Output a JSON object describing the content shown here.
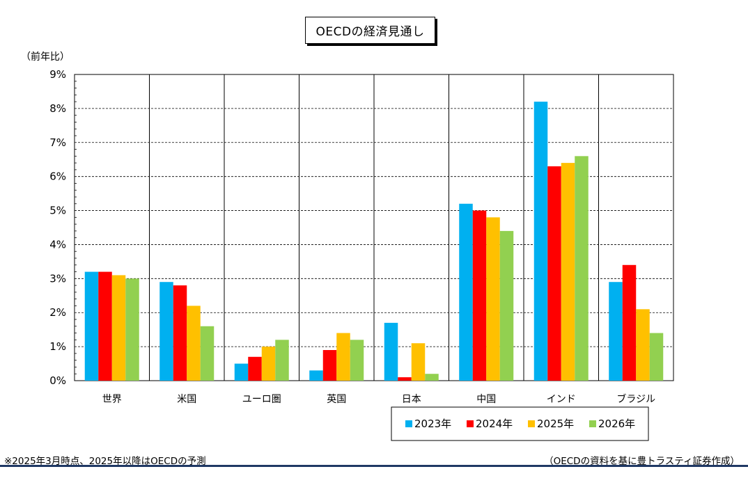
{
  "chart_data": {
    "type": "bar",
    "title": "OECDの経済見通し",
    "ylabel": "（前年比）",
    "ylim": [
      0,
      9
    ],
    "yticks": [
      "0%",
      "1%",
      "2%",
      "3%",
      "4%",
      "5%",
      "6%",
      "7%",
      "8%",
      "9%"
    ],
    "categories": [
      "世界",
      "米国",
      "ユーロ圏",
      "英国",
      "日本",
      "中国",
      "インド",
      "ブラジル"
    ],
    "series": [
      {
        "name": "2023年",
        "color": "#00b0f0",
        "values": [
          3.2,
          2.9,
          0.5,
          0.3,
          1.7,
          5.2,
          8.2,
          2.9
        ]
      },
      {
        "name": "2024年",
        "color": "#ff0000",
        "values": [
          3.2,
          2.8,
          0.7,
          0.9,
          0.1,
          5.0,
          6.3,
          3.4
        ]
      },
      {
        "name": "2025年",
        "color": "#ffc000",
        "values": [
          3.1,
          2.2,
          1.0,
          1.4,
          1.1,
          4.8,
          6.4,
          2.1
        ]
      },
      {
        "name": "2026年",
        "color": "#92d050",
        "values": [
          3.0,
          1.6,
          1.2,
          1.2,
          0.2,
          4.4,
          6.6,
          1.4
        ]
      }
    ],
    "grid": true,
    "legend_position": "bottom-right"
  },
  "notes": {
    "left": "※2025年3月時点、2025年以降はOECDの予測",
    "right": "（OECDの資料を基に豊トラスティ証券作成）"
  }
}
